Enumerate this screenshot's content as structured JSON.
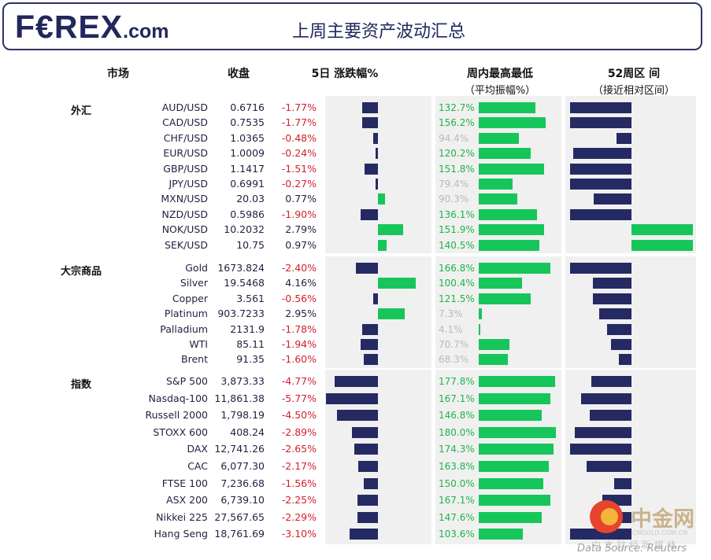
{
  "header": {
    "logo_main": "F€REX",
    "logo_com": ".com",
    "title": "上周主要资产波动汇总"
  },
  "columns": {
    "market": "市场",
    "close": "收盘",
    "change": "5日 涨跌幅%",
    "weekly": "周内最高最低",
    "weekly_sub": "（平均振幅%）",
    "w52": "52周区 间",
    "w52_sub": "（接近相对区间）"
  },
  "footer": {
    "source": "Data Source: Reuters",
    "watermark_cn": "中金网",
    "watermark_en": "CNGOLD.COM.CN",
    "watermark_sub": "中文财经新媒体"
  },
  "colors": {
    "navy": "#262a63",
    "green": "#16c65a",
    "negative": "#d4202a",
    "amp_green": "#1db34c",
    "amp_gray": "#b9b9b9",
    "panel": "#f0f0f0"
  },
  "chart_data": {
    "type": "table",
    "groups": [
      {
        "name": "外汇",
        "rows": [
          {
            "name": "AUD/USD",
            "close": "0.6716",
            "change": "-1.77%",
            "change_value": -1.77,
            "amp": "132.7%",
            "amp_value": 132.7,
            "amp_highlight": true,
            "w52_value": -1.0
          },
          {
            "name": "CAD/USD",
            "close": "0.7535",
            "change": "-1.77%",
            "change_value": -1.77,
            "amp": "156.2%",
            "amp_value": 156.2,
            "amp_highlight": true,
            "w52_value": -1.0
          },
          {
            "name": "CHF/USD",
            "close": "1.0365",
            "change": "-0.48%",
            "change_value": -0.48,
            "amp": "94.4%",
            "amp_value": 94.4,
            "amp_highlight": false,
            "w52_value": -0.25
          },
          {
            "name": "EUR/USD",
            "close": "1.0009",
            "change": "-0.24%",
            "change_value": -0.24,
            "amp": "120.2%",
            "amp_value": 120.2,
            "amp_highlight": true,
            "w52_value": -0.95
          },
          {
            "name": "GBP/USD",
            "close": "1.1417",
            "change": "-1.51%",
            "change_value": -1.51,
            "amp": "151.8%",
            "amp_value": 151.8,
            "amp_highlight": true,
            "w52_value": -1.0
          },
          {
            "name": "JPY/USD",
            "close": "0.6991",
            "change": "-0.27%",
            "change_value": -0.27,
            "amp": "79.4%",
            "amp_value": 79.4,
            "amp_highlight": false,
            "w52_value": -1.0
          },
          {
            "name": "MXN/USD",
            "close": "20.03",
            "change": "0.77%",
            "change_value": 0.77,
            "amp": "90.3%",
            "amp_value": 90.3,
            "amp_highlight": false,
            "w52_value": -0.62
          },
          {
            "name": "NZD/USD",
            "close": "0.5986",
            "change": "-1.90%",
            "change_value": -1.9,
            "amp": "136.1%",
            "amp_value": 136.1,
            "amp_highlight": true,
            "w52_value": -1.0
          },
          {
            "name": "NOK/USD",
            "close": "10.2032",
            "change": "2.79%",
            "change_value": 2.79,
            "amp": "151.9%",
            "amp_value": 151.9,
            "amp_highlight": true,
            "w52_value": 1.0
          },
          {
            "name": "SEK/USD",
            "close": "10.75",
            "change": "0.97%",
            "change_value": 0.97,
            "amp": "140.5%",
            "amp_value": 140.5,
            "amp_highlight": true,
            "w52_value": 1.0
          }
        ]
      },
      {
        "name": "大宗商品",
        "rows": [
          {
            "name": "Gold",
            "close": "1673.824",
            "change": "-2.40%",
            "change_value": -2.4,
            "amp": "166.8%",
            "amp_value": 166.8,
            "amp_highlight": true,
            "w52_value": -1.0
          },
          {
            "name": "Silver",
            "close": "19.5468",
            "change": "4.16%",
            "change_value": 4.16,
            "amp": "100.4%",
            "amp_value": 100.4,
            "amp_highlight": true,
            "w52_value": -0.63
          },
          {
            "name": "Copper",
            "close": "3.561",
            "change": "-0.56%",
            "change_value": -0.56,
            "amp": "121.5%",
            "amp_value": 121.5,
            "amp_highlight": true,
            "w52_value": -0.63
          },
          {
            "name": "Platinum",
            "close": "903.7233",
            "change": "2.95%",
            "change_value": 2.95,
            "amp": "7.3%",
            "amp_value": 7.3,
            "amp_highlight": false,
            "w52_value": -0.52
          },
          {
            "name": "Palladium",
            "close": "2131.9",
            "change": "-1.78%",
            "change_value": -1.78,
            "amp": "4.1%",
            "amp_value": 4.1,
            "amp_highlight": false,
            "w52_value": -0.4
          },
          {
            "name": "WTI",
            "close": "85.11",
            "change": "-1.94%",
            "change_value": -1.94,
            "amp": "70.7%",
            "amp_value": 70.7,
            "amp_highlight": false,
            "w52_value": -0.33
          },
          {
            "name": "Brent",
            "close": "91.35",
            "change": "-1.60%",
            "change_value": -1.6,
            "amp": "68.3%",
            "amp_value": 68.3,
            "amp_highlight": false,
            "w52_value": -0.2
          }
        ]
      },
      {
        "name": "指数",
        "rows": [
          {
            "name": "S&P 500",
            "close": "3,873.33",
            "change": "-4.77%",
            "change_value": -4.77,
            "amp": "177.8%",
            "amp_value": 177.8,
            "amp_highlight": true,
            "w52_value": -0.65
          },
          {
            "name": "Nasdaq-100",
            "close": "11,861.38",
            "change": "-5.77%",
            "change_value": -5.77,
            "amp": "167.1%",
            "amp_value": 167.1,
            "amp_highlight": true,
            "w52_value": -0.82
          },
          {
            "name": "Russell 2000",
            "close": "1,798.19",
            "change": "-4.50%",
            "change_value": -4.5,
            "amp": "146.8%",
            "amp_value": 146.8,
            "amp_highlight": true,
            "w52_value": -0.68
          },
          {
            "name": "STOXX 600",
            "close": "408.24",
            "change": "-2.89%",
            "change_value": -2.89,
            "amp": "180.0%",
            "amp_value": 180.0,
            "amp_highlight": true,
            "w52_value": -0.92
          },
          {
            "name": "DAX",
            "close": "12,741.26",
            "change": "-2.65%",
            "change_value": -2.65,
            "amp": "174.3%",
            "amp_value": 174.3,
            "amp_highlight": true,
            "w52_value": -1.0
          },
          {
            "name": "CAC",
            "close": "6,077.30",
            "change": "-2.17%",
            "change_value": -2.17,
            "amp": "163.8%",
            "amp_value": 163.8,
            "amp_highlight": true,
            "w52_value": -0.73
          },
          {
            "name": "FTSE 100",
            "close": "7,236.68",
            "change": "-1.56%",
            "change_value": -1.56,
            "amp": "150.0%",
            "amp_value": 150.0,
            "amp_highlight": true,
            "w52_value": -0.28
          },
          {
            "name": "ASX 200",
            "close": "6,739.10",
            "change": "-2.25%",
            "change_value": -2.25,
            "amp": "167.1%",
            "amp_value": 167.1,
            "amp_highlight": true,
            "w52_value": -0.48
          },
          {
            "name": "Nikkei 225",
            "close": "27,567.65",
            "change": "-2.29%",
            "change_value": -2.29,
            "amp": "147.6%",
            "amp_value": 147.6,
            "amp_highlight": true,
            "w52_value": -0.22
          },
          {
            "name": "Hang Seng",
            "close": "18,761.69",
            "change": "-3.10%",
            "change_value": -3.1,
            "amp": "103.6%",
            "amp_value": 103.6,
            "amp_highlight": true,
            "w52_value": -1.0
          }
        ]
      }
    ]
  }
}
